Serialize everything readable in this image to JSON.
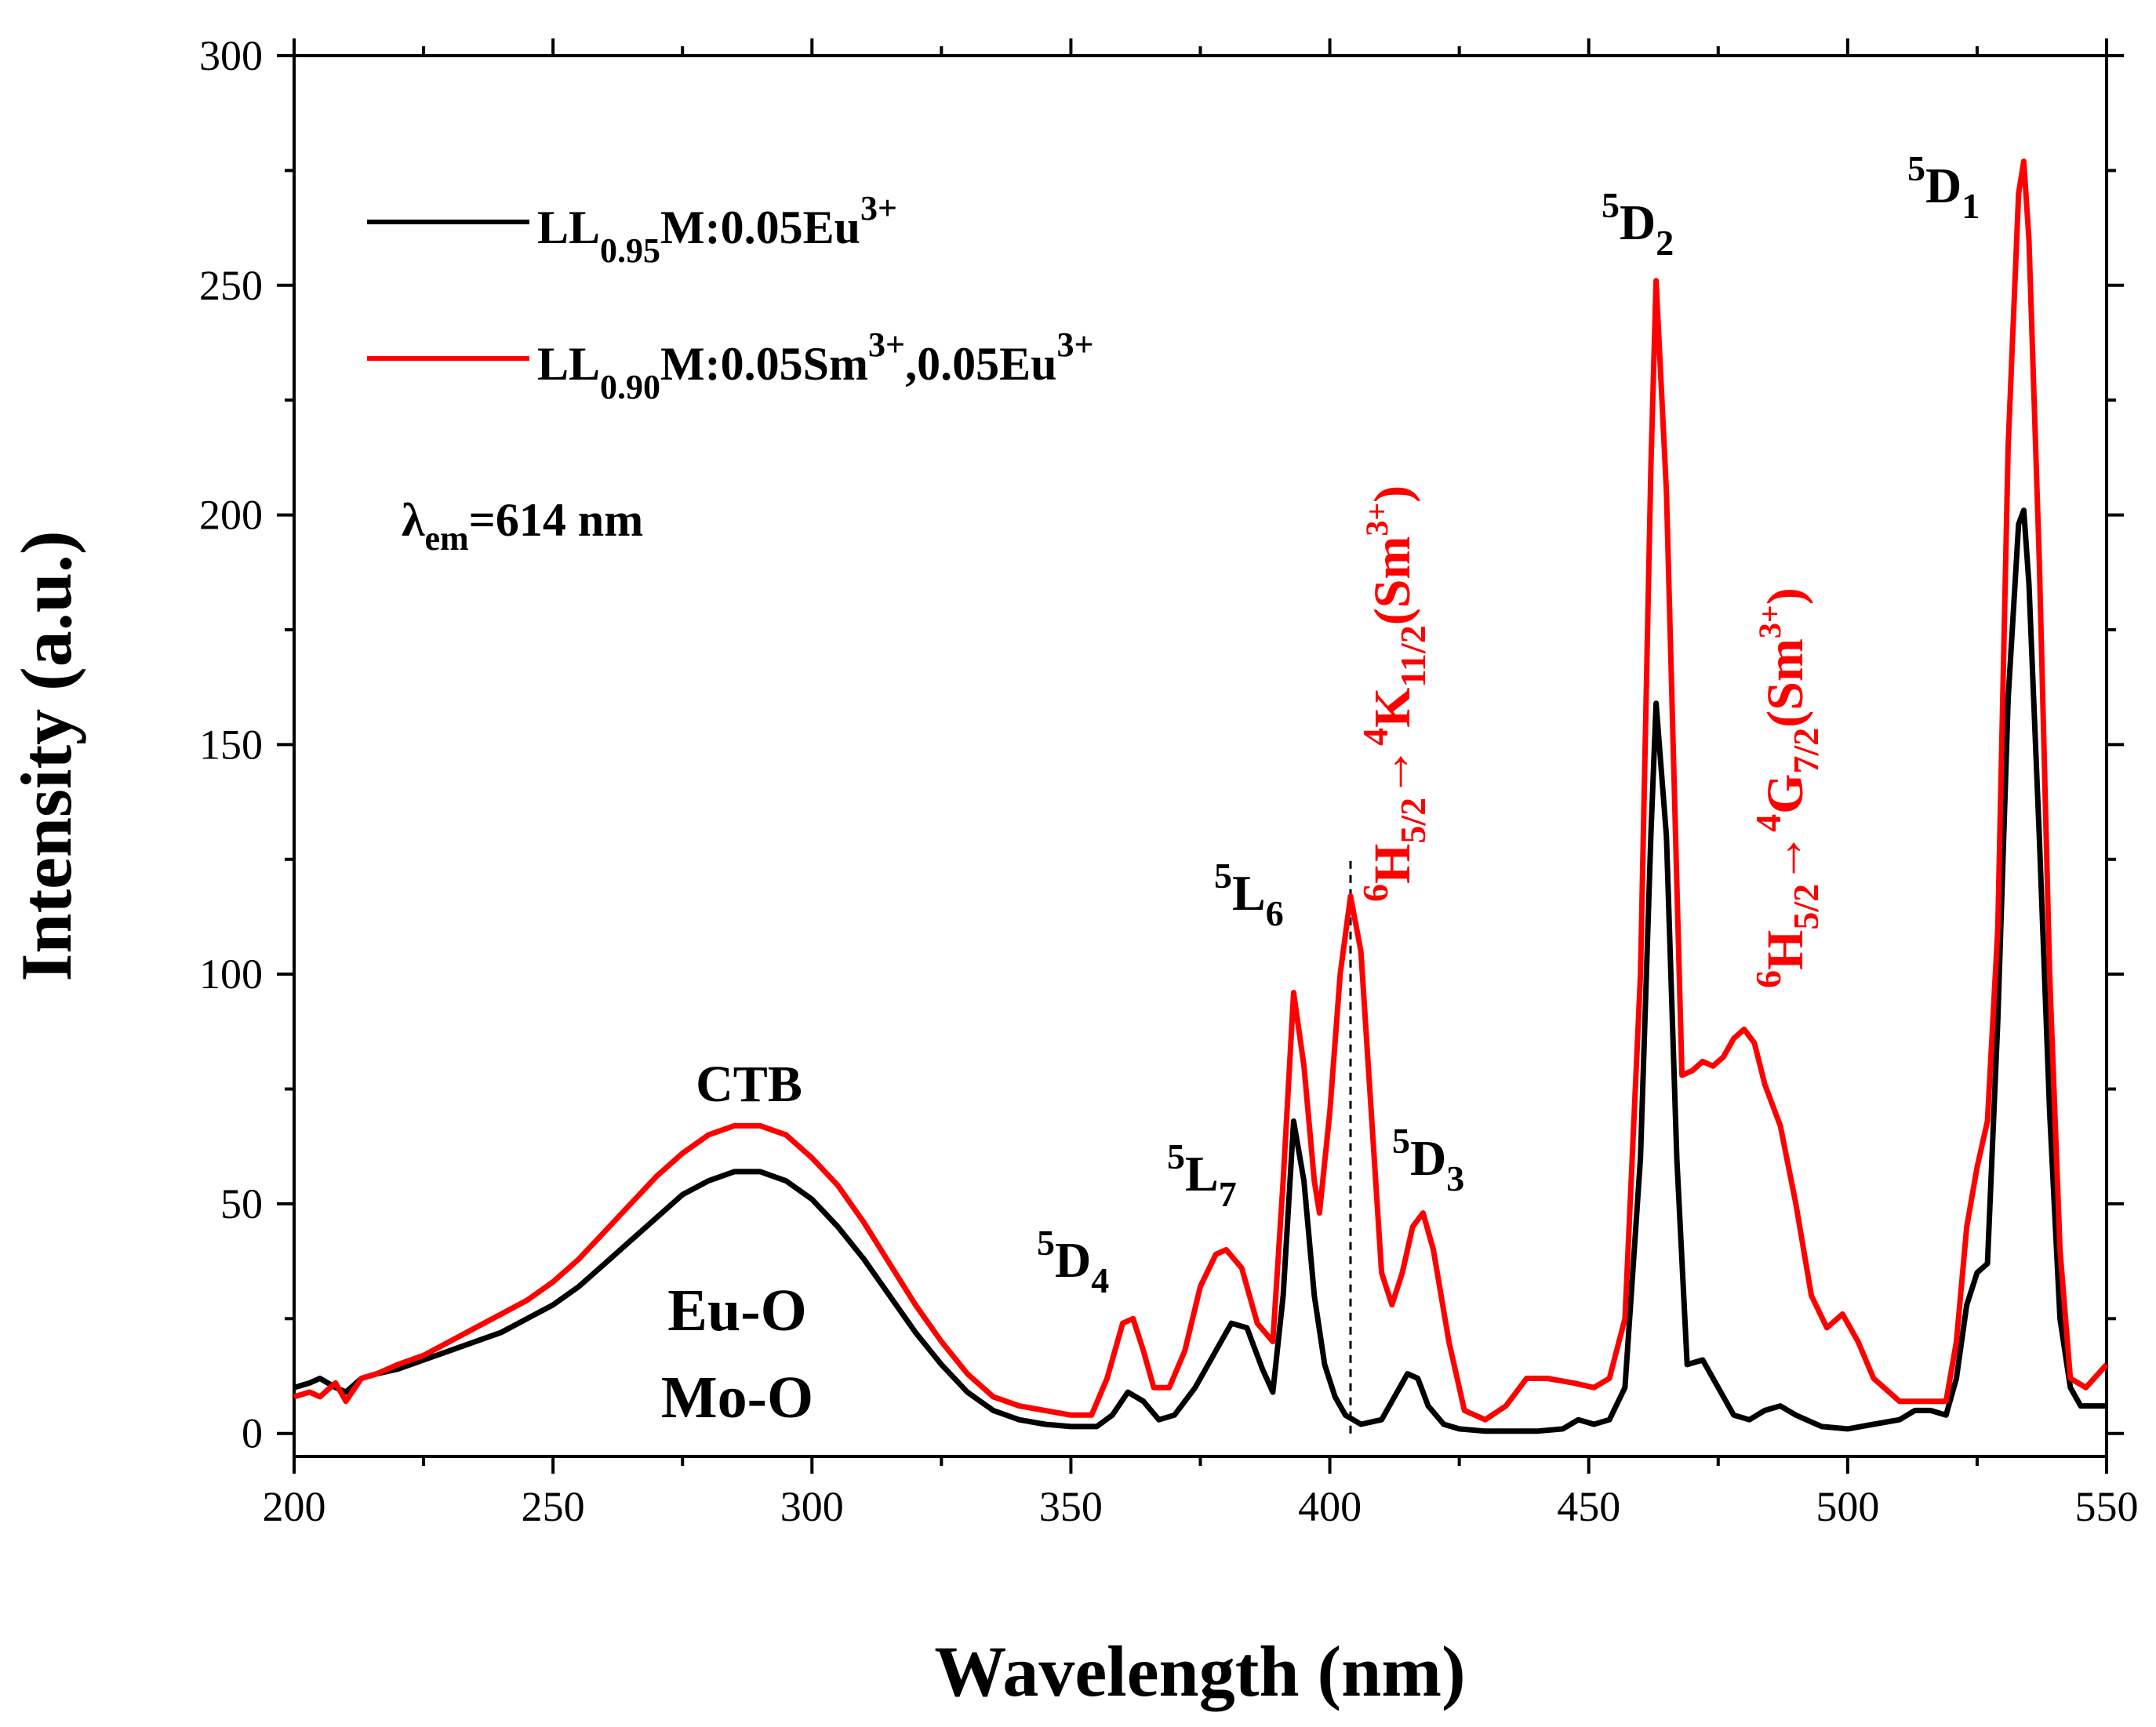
{
  "chart_data": {
    "type": "line",
    "xlabel": "Wavelength (nm)",
    "ylabel": "Intensity (a.u.)",
    "xlim": [
      200,
      550
    ],
    "ylim": [
      -5,
      300
    ],
    "xticks": [
      200,
      250,
      300,
      350,
      400,
      450,
      500,
      550
    ],
    "yticks": [
      0,
      50,
      100,
      150,
      200,
      250,
      300
    ],
    "legend": {
      "position": "top-left",
      "entries": [
        {
          "base": "LL",
          "sub": "0.95",
          "mid": "M:0.05Eu",
          "sup": "3+",
          "mid2": "",
          "sup2": "",
          "color": "#000000"
        },
        {
          "base": "LL",
          "sub": "0.90",
          "mid": "M:0.05Sm",
          "sup": "3+",
          "mid2": ",0.05Eu",
          "sup2": "3+",
          "color": "#ff0000"
        }
      ]
    },
    "excitation_note": {
      "lambda": "λ",
      "sub": "em",
      "value": "=614 nm"
    },
    "series": [
      {
        "name": "LL0.95M:0.05Eu3+",
        "color": "#000000",
        "points": [
          [
            200,
            10
          ],
          [
            203,
            11
          ],
          [
            205,
            12
          ],
          [
            208,
            10
          ],
          [
            210,
            9
          ],
          [
            213,
            12
          ],
          [
            216,
            13
          ],
          [
            220,
            14
          ],
          [
            225,
            16
          ],
          [
            230,
            18
          ],
          [
            235,
            20
          ],
          [
            240,
            22
          ],
          [
            245,
            25
          ],
          [
            250,
            28
          ],
          [
            255,
            32
          ],
          [
            260,
            37
          ],
          [
            265,
            42
          ],
          [
            270,
            47
          ],
          [
            275,
            52
          ],
          [
            280,
            55
          ],
          [
            285,
            57
          ],
          [
            290,
            57
          ],
          [
            295,
            55
          ],
          [
            300,
            51
          ],
          [
            305,
            45
          ],
          [
            310,
            38
          ],
          [
            315,
            30
          ],
          [
            320,
            22
          ],
          [
            325,
            15
          ],
          [
            330,
            9
          ],
          [
            335,
            5
          ],
          [
            340,
            3
          ],
          [
            345,
            2
          ],
          [
            350,
            1.5
          ],
          [
            355,
            1.5
          ],
          [
            358,
            4
          ],
          [
            361,
            9
          ],
          [
            364,
            7
          ],
          [
            367,
            3
          ],
          [
            370,
            4
          ],
          [
            374,
            10
          ],
          [
            378,
            18
          ],
          [
            381,
            24
          ],
          [
            384,
            23
          ],
          [
            387,
            14
          ],
          [
            389,
            9
          ],
          [
            391,
            30
          ],
          [
            393,
            68
          ],
          [
            395,
            55
          ],
          [
            397,
            30
          ],
          [
            399,
            15
          ],
          [
            401,
            8
          ],
          [
            403,
            4
          ],
          [
            406,
            2
          ],
          [
            410,
            3
          ],
          [
            412,
            7
          ],
          [
            415,
            13
          ],
          [
            417,
            12
          ],
          [
            419,
            6
          ],
          [
            422,
            2
          ],
          [
            425,
            1
          ],
          [
            430,
            0.5
          ],
          [
            440,
            0.5
          ],
          [
            445,
            1
          ],
          [
            448,
            3
          ],
          [
            451,
            2
          ],
          [
            454,
            3
          ],
          [
            457,
            10
          ],
          [
            460,
            60
          ],
          [
            462,
            130
          ],
          [
            463,
            159
          ],
          [
            465,
            130
          ],
          [
            467,
            60
          ],
          [
            469,
            15
          ],
          [
            472,
            16
          ],
          [
            475,
            10
          ],
          [
            478,
            4
          ],
          [
            481,
            3
          ],
          [
            484,
            5
          ],
          [
            487,
            6
          ],
          [
            490,
            4
          ],
          [
            495,
            1.5
          ],
          [
            500,
            1
          ],
          [
            505,
            2
          ],
          [
            510,
            3
          ],
          [
            513,
            5
          ],
          [
            516,
            5
          ],
          [
            519,
            4
          ],
          [
            521,
            12
          ],
          [
            523,
            28
          ],
          [
            525,
            35
          ],
          [
            527,
            37
          ],
          [
            529,
            90
          ],
          [
            531,
            160
          ],
          [
            533,
            198
          ],
          [
            534,
            201
          ],
          [
            535,
            185
          ],
          [
            537,
            130
          ],
          [
            539,
            70
          ],
          [
            541,
            25
          ],
          [
            543,
            10
          ],
          [
            545,
            6
          ],
          [
            550,
            6
          ]
        ]
      },
      {
        "name": "LL0.90M:0.05Sm3+,0.05Eu3+",
        "color": "#ff0000",
        "points": [
          [
            200,
            8
          ],
          [
            203,
            9
          ],
          [
            205,
            8
          ],
          [
            208,
            11
          ],
          [
            210,
            7
          ],
          [
            213,
            12
          ],
          [
            216,
            13
          ],
          [
            220,
            15
          ],
          [
            225,
            17
          ],
          [
            230,
            20
          ],
          [
            235,
            23
          ],
          [
            240,
            26
          ],
          [
            245,
            29
          ],
          [
            250,
            33
          ],
          [
            255,
            38
          ],
          [
            260,
            44
          ],
          [
            265,
            50
          ],
          [
            270,
            56
          ],
          [
            275,
            61
          ],
          [
            280,
            65
          ],
          [
            285,
            67
          ],
          [
            290,
            67
          ],
          [
            295,
            65
          ],
          [
            300,
            60
          ],
          [
            305,
            54
          ],
          [
            310,
            46
          ],
          [
            315,
            37
          ],
          [
            320,
            28
          ],
          [
            325,
            20
          ],
          [
            330,
            13
          ],
          [
            335,
            8
          ],
          [
            340,
            6
          ],
          [
            345,
            5
          ],
          [
            350,
            4
          ],
          [
            354,
            4
          ],
          [
            357,
            12
          ],
          [
            360,
            24
          ],
          [
            362,
            25
          ],
          [
            364,
            18
          ],
          [
            366,
            10
          ],
          [
            369,
            10
          ],
          [
            372,
            18
          ],
          [
            375,
            32
          ],
          [
            378,
            39
          ],
          [
            380,
            40
          ],
          [
            383,
            36
          ],
          [
            386,
            24
          ],
          [
            389,
            20
          ],
          [
            391,
            55
          ],
          [
            393,
            96
          ],
          [
            395,
            80
          ],
          [
            397,
            55
          ],
          [
            398,
            48
          ],
          [
            400,
            70
          ],
          [
            402,
            100
          ],
          [
            404,
            117
          ],
          [
            406,
            105
          ],
          [
            408,
            70
          ],
          [
            410,
            35
          ],
          [
            412,
            28
          ],
          [
            414,
            35
          ],
          [
            416,
            45
          ],
          [
            418,
            48
          ],
          [
            420,
            40
          ],
          [
            423,
            20
          ],
          [
            426,
            5
          ],
          [
            430,
            3
          ],
          [
            434,
            6
          ],
          [
            438,
            12
          ],
          [
            442,
            12
          ],
          [
            447,
            11
          ],
          [
            451,
            10
          ],
          [
            454,
            12
          ],
          [
            457,
            25
          ],
          [
            460,
            100
          ],
          [
            462,
            210
          ],
          [
            463,
            251
          ],
          [
            465,
            205
          ],
          [
            467,
            120
          ],
          [
            468,
            78
          ],
          [
            470,
            79
          ],
          [
            472,
            81
          ],
          [
            474,
            80
          ],
          [
            476,
            82
          ],
          [
            478,
            86
          ],
          [
            480,
            88
          ],
          [
            482,
            85
          ],
          [
            484,
            76
          ],
          [
            487,
            67
          ],
          [
            490,
            50
          ],
          [
            493,
            30
          ],
          [
            496,
            23
          ],
          [
            499,
            26
          ],
          [
            502,
            20
          ],
          [
            505,
            12
          ],
          [
            510,
            7
          ],
          [
            515,
            7
          ],
          [
            519,
            7
          ],
          [
            521,
            20
          ],
          [
            523,
            45
          ],
          [
            525,
            58
          ],
          [
            527,
            68
          ],
          [
            529,
            110
          ],
          [
            531,
            215
          ],
          [
            533,
            270
          ],
          [
            534,
            277
          ],
          [
            535,
            260
          ],
          [
            537,
            190
          ],
          [
            539,
            100
          ],
          [
            541,
            40
          ],
          [
            543,
            12
          ],
          [
            546,
            10
          ],
          [
            550,
            15
          ]
        ]
      }
    ],
    "reference_line": {
      "x": 404,
      "style": "dashed"
    },
    "annotations": {
      "ctb": "CTB",
      "euo": "Eu-O",
      "moo": "Mo-O",
      "d4": {
        "sup": "5",
        "base": "D",
        "sub": "4"
      },
      "l7": {
        "sup": "5",
        "base": "L",
        "sub": "7"
      },
      "l6": {
        "sup": "5",
        "base": "L",
        "sub": "6"
      },
      "d3": {
        "sup": "5",
        "base": "D",
        "sub": "3"
      },
      "d2": {
        "sup": "5",
        "base": "D",
        "sub": "2"
      },
      "d1": {
        "sup": "5",
        "base": "D",
        "sub": "1"
      },
      "sm1": {
        "sup1": "6",
        "base1": "H",
        "sub1": "5/2",
        "arrow": "→",
        "sup2": "4",
        "base2": "K",
        "sub2": "11/2",
        "ion": "(Sm",
        "ion_sup": "3+",
        "close": ")"
      },
      "sm2": {
        "sup1": "6",
        "base1": "H",
        "sub1": "5/2",
        "arrow": "→",
        "sup2": "4",
        "base2": "G",
        "sub2": "7/2",
        "ion": "(Sm",
        "ion_sup": "3+",
        "close": ")"
      }
    }
  }
}
